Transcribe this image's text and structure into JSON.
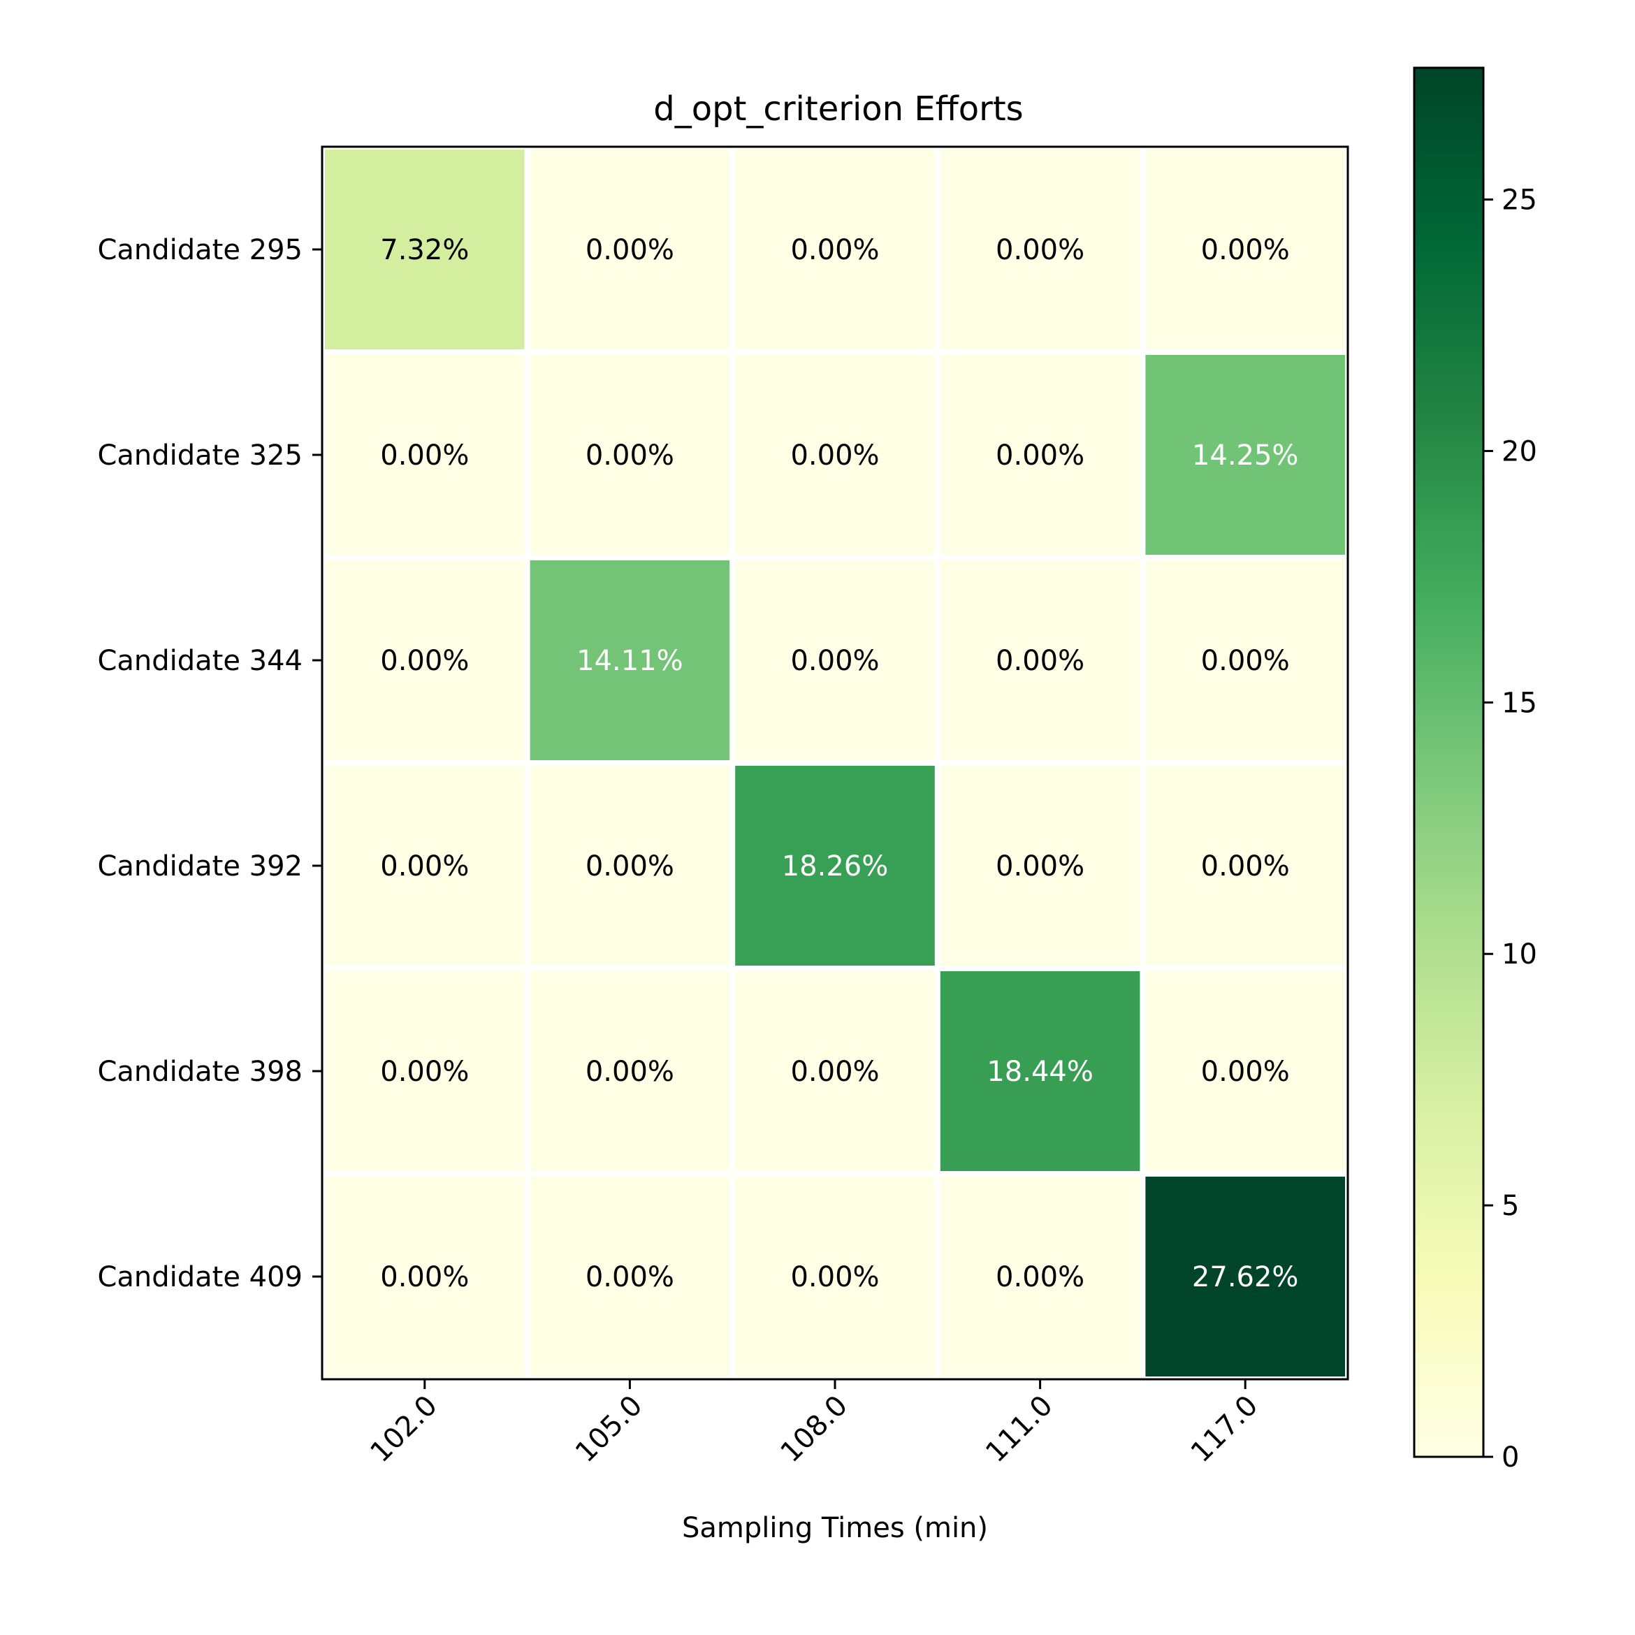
{
  "chart_data": {
    "type": "heatmap",
    "title": "d_opt_criterion Efforts",
    "xlabel": "Sampling Times (min)",
    "ylabel": "",
    "x_categories": [
      "102.0",
      "105.0",
      "108.0",
      "111.0",
      "117.0"
    ],
    "y_categories": [
      "Candidate 295",
      "Candidate 325",
      "Candidate 344",
      "Candidate 392",
      "Candidate 398",
      "Candidate 409"
    ],
    "values": [
      [
        7.32,
        0.0,
        0.0,
        0.0,
        0.0
      ],
      [
        0.0,
        0.0,
        0.0,
        0.0,
        14.25
      ],
      [
        0.0,
        14.11,
        0.0,
        0.0,
        0.0
      ],
      [
        0.0,
        0.0,
        18.26,
        0.0,
        0.0
      ],
      [
        0.0,
        0.0,
        0.0,
        18.44,
        0.0
      ],
      [
        0.0,
        0.0,
        0.0,
        0.0,
        27.62
      ]
    ],
    "value_suffix": "%",
    "colormap": "YlGn",
    "value_range": [
      0,
      27.62
    ],
    "colorbar_ticks": [
      0,
      5,
      10,
      15,
      20,
      25
    ],
    "colors": {
      "colormap_stops": [
        "#ffffe5",
        "#f7fcb9",
        "#d9f0a3",
        "#addd8e",
        "#78c679",
        "#41ab5d",
        "#238443",
        "#006837",
        "#004529"
      ],
      "cell_border": "#ffffff",
      "axis": "#000000",
      "text_dark": "#000000",
      "text_light": "#ffffff"
    }
  }
}
